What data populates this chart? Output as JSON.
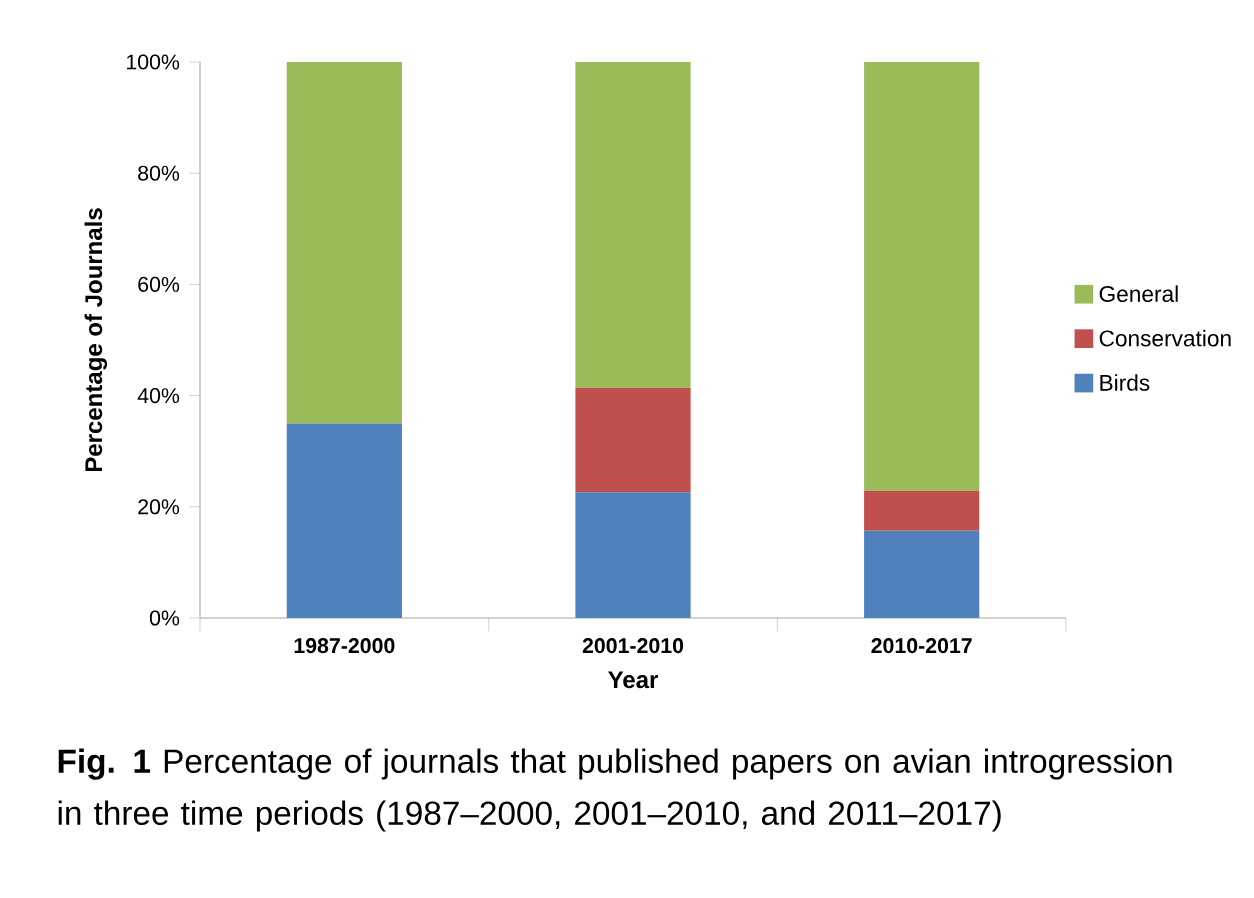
{
  "chart_data": {
    "type": "bar",
    "stacked": true,
    "xlabel": "Year",
    "ylabel": "Percentage of Journals",
    "categories": [
      "1987-2000",
      "2001-2010",
      "2010-2017"
    ],
    "series": [
      {
        "name": "Birds",
        "color": "#4f81bd",
        "values": [
          35,
          22.6,
          15.7
        ]
      },
      {
        "name": "Conservation",
        "color": "#c0504d",
        "values": [
          0,
          18.8,
          7.2
        ]
      },
      {
        "name": "General",
        "color": "#9bbb59",
        "values": [
          65,
          58.6,
          77.1
        ]
      }
    ],
    "ylim": [
      0,
      100
    ],
    "yticks": [
      {
        "value": 0,
        "label": "0%"
      },
      {
        "value": 20,
        "label": "20%"
      },
      {
        "value": 40,
        "label": "40%"
      },
      {
        "value": 60,
        "label": "60%"
      },
      {
        "value": 80,
        "label": "80%"
      },
      {
        "value": 100,
        "label": "100%"
      }
    ],
    "legend": "right",
    "grid": false,
    "annotations": [
      "**Fig. 1** Percentage of journals that published papers on avian introgression in three time periods (1987–2000, 2001–2010, and 2011–2017)"
    ]
  }
}
